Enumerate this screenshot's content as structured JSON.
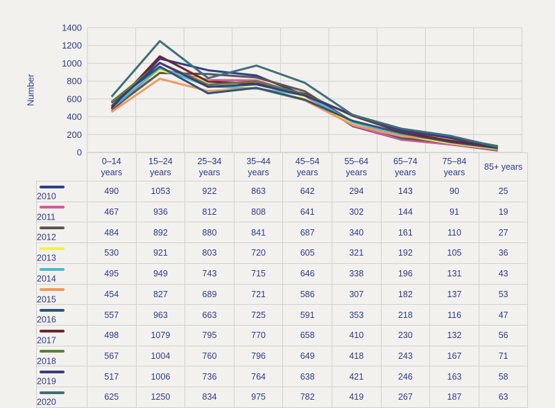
{
  "chart_data": {
    "type": "line",
    "title": "",
    "xlabel": "",
    "ylabel": "Number",
    "ylim": [
      0,
      1400
    ],
    "yticks": [
      0,
      200,
      400,
      600,
      800,
      1000,
      1200,
      1400
    ],
    "grid": true,
    "categories": [
      "0–14 years",
      "15–24 years",
      "25–34 years",
      "35–44 years",
      "45–54 years",
      "55–64 years",
      "65–74 years",
      "75–84 years",
      "85+ years"
    ],
    "series": [
      {
        "name": "2010",
        "color": "#2b3e8e",
        "values": [
          490,
          1053,
          922,
          863,
          642,
          294,
          143,
          90,
          25
        ]
      },
      {
        "name": "2011",
        "color": "#d9569a",
        "values": [
          467,
          936,
          812,
          808,
          641,
          302,
          144,
          91,
          19
        ]
      },
      {
        "name": "2012",
        "color": "#5b5750",
        "values": [
          484,
          892,
          880,
          841,
          687,
          340,
          161,
          110,
          27
        ]
      },
      {
        "name": "2013",
        "color": "#f5ee4a",
        "values": [
          530,
          921,
          803,
          720,
          605,
          321,
          192,
          105,
          36
        ]
      },
      {
        "name": "2014",
        "color": "#4db6d3",
        "values": [
          495,
          949,
          743,
          715,
          646,
          338,
          196,
          131,
          43
        ]
      },
      {
        "name": "2015",
        "color": "#ec9a5f",
        "values": [
          454,
          827,
          689,
          721,
          586,
          307,
          182,
          137,
          53
        ]
      },
      {
        "name": "2016",
        "color": "#2d5478",
        "values": [
          557,
          963,
          663,
          725,
          591,
          353,
          218,
          116,
          47
        ]
      },
      {
        "name": "2017",
        "color": "#6b2430",
        "values": [
          498,
          1079,
          795,
          770,
          658,
          410,
          230,
          132,
          56
        ]
      },
      {
        "name": "2018",
        "color": "#5d7d3d",
        "values": [
          567,
          1004,
          760,
          796,
          649,
          418,
          243,
          167,
          71
        ]
      },
      {
        "name": "2019",
        "color": "#3d3a78",
        "values": [
          517,
          1006,
          736,
          764,
          638,
          421,
          246,
          163,
          58
        ]
      },
      {
        "name": "2020",
        "color": "#3e6f7a",
        "values": [
          625,
          1250,
          834,
          975,
          782,
          419,
          267,
          187,
          63
        ]
      }
    ]
  }
}
